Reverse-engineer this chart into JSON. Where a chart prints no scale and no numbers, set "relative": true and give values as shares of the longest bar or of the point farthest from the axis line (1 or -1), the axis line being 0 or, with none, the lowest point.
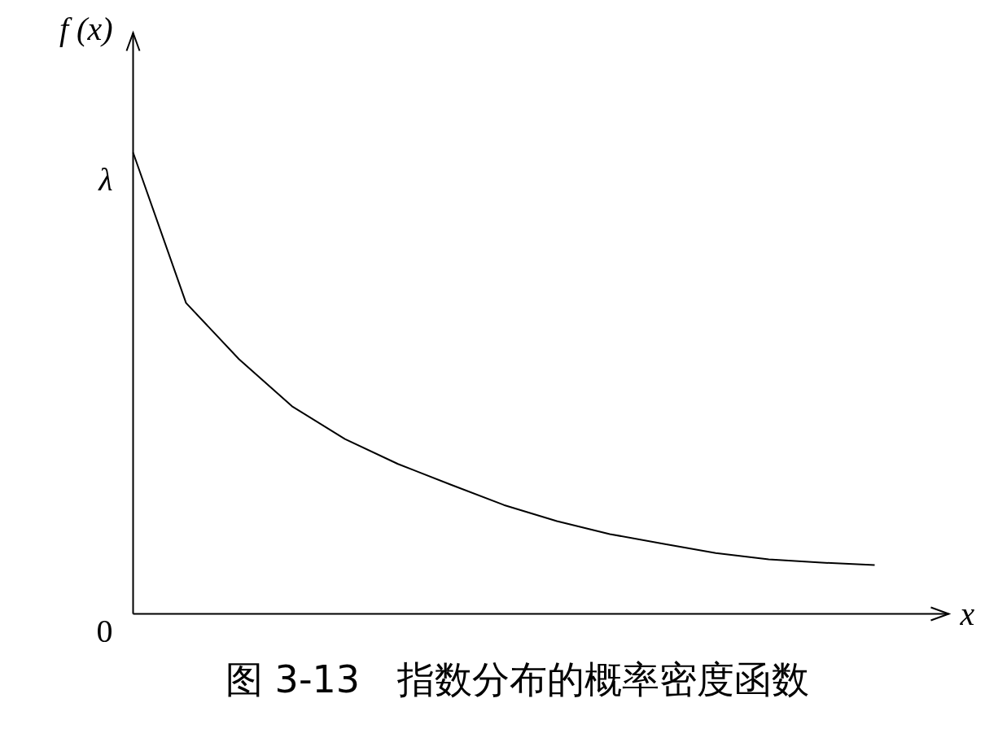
{
  "chart_data": {
    "type": "line",
    "relative": true,
    "title": "图 3-13　指数分布的概率密度函数",
    "xlabel": "x",
    "ylabel": "f (x)",
    "categories": [
      null,
      null,
      null,
      null,
      null,
      null,
      null,
      null,
      null,
      null,
      null,
      null,
      null,
      null,
      null
    ],
    "series": [
      {
        "color": "#000000",
        "values": [
          1,
          0.674,
          0.552,
          0.45,
          0.379,
          0.325,
          0.28,
          0.236,
          0.201,
          0.173,
          0.152,
          0.132,
          0.118,
          0.111,
          0.106
        ]
      }
    ],
    "annotations": [
      "λ",
      "0"
    ]
  }
}
